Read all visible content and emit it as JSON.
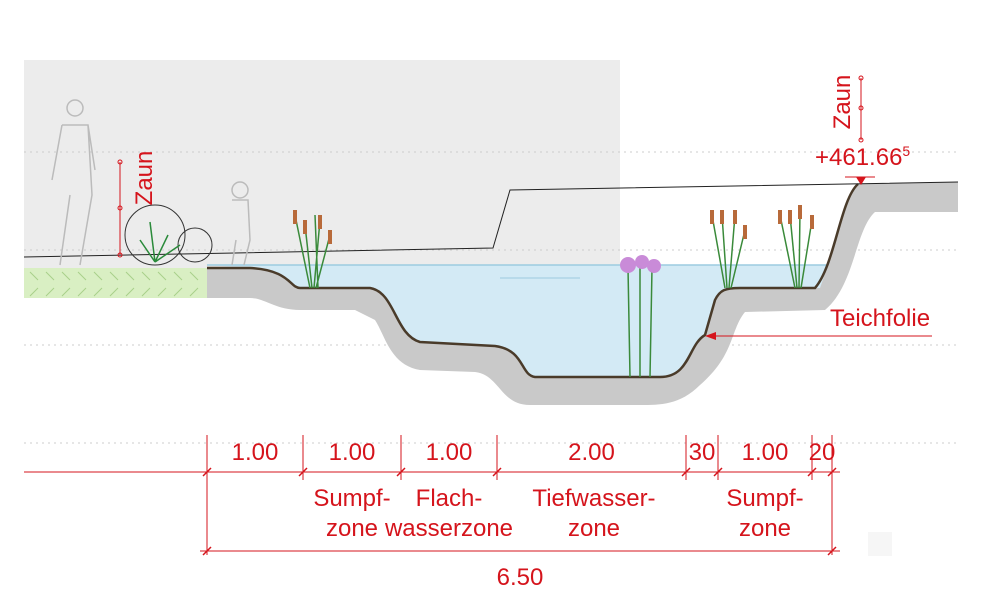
{
  "labels": {
    "fence_left": "Zaun",
    "fence_right": "Zaun",
    "elevation": "+461.66",
    "elevation_sup": "5",
    "liner": "Teichfolie"
  },
  "dimensions": [
    "1.00",
    "1.00",
    "1.00",
    "2.00",
    "30",
    "1.00",
    "20"
  ],
  "total": "6.50",
  "zones": [
    {
      "line1": "Sumpf-",
      "line2": "zone"
    },
    {
      "line1": "Flach-",
      "line2": "wasserzone"
    },
    {
      "line1": "Tiefwasser-",
      "line2": "zone"
    },
    {
      "line1": "Sumpf-",
      "line2": "zone"
    }
  ]
}
